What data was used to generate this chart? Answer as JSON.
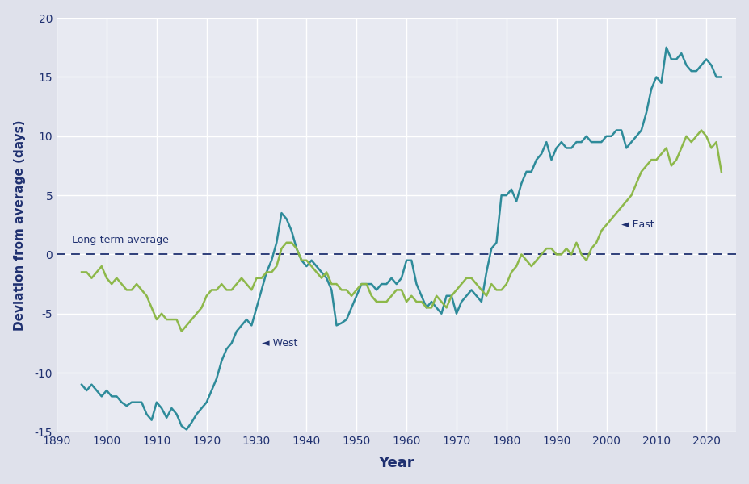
{
  "title": "",
  "xlabel": "Year",
  "ylabel": "Deviation from average (days)",
  "xlim": [
    1890,
    2026
  ],
  "ylim": [
    -15,
    20
  ],
  "xticks": [
    1890,
    1900,
    1910,
    1920,
    1930,
    1940,
    1950,
    1960,
    1970,
    1980,
    1990,
    2000,
    2010,
    2020
  ],
  "yticks": [
    -15,
    -10,
    -5,
    0,
    5,
    10,
    15,
    20
  ],
  "background_color": "#dfe1eb",
  "plot_bg_color": "#e8eaf2",
  "west_color": "#2e8b9a",
  "east_color": "#8db84a",
  "avg_line_color": "#1f3070",
  "annotation_color": "#1f3070",
  "west_data": {
    "years": [
      1895,
      1896,
      1897,
      1898,
      1899,
      1900,
      1901,
      1902,
      1903,
      1904,
      1905,
      1906,
      1907,
      1908,
      1909,
      1910,
      1911,
      1912,
      1913,
      1914,
      1915,
      1916,
      1917,
      1918,
      1919,
      1920,
      1921,
      1922,
      1923,
      1924,
      1925,
      1926,
      1927,
      1928,
      1929,
      1930,
      1931,
      1932,
      1933,
      1934,
      1935,
      1936,
      1937,
      1938,
      1939,
      1940,
      1941,
      1942,
      1943,
      1944,
      1945,
      1946,
      1947,
      1948,
      1949,
      1950,
      1951,
      1952,
      1953,
      1954,
      1955,
      1956,
      1957,
      1958,
      1959,
      1960,
      1961,
      1962,
      1963,
      1964,
      1965,
      1966,
      1967,
      1968,
      1969,
      1970,
      1971,
      1972,
      1973,
      1974,
      1975,
      1976,
      1977,
      1978,
      1979,
      1980,
      1981,
      1982,
      1983,
      1984,
      1985,
      1986,
      1987,
      1988,
      1989,
      1990,
      1991,
      1992,
      1993,
      1994,
      1995,
      1996,
      1997,
      1998,
      1999,
      2000,
      2001,
      2002,
      2003,
      2004,
      2005,
      2006,
      2007,
      2008,
      2009,
      2010,
      2011,
      2012,
      2013,
      2014,
      2015,
      2016,
      2017,
      2018,
      2019,
      2020,
      2021,
      2022,
      2023
    ],
    "values": [
      -11.0,
      -11.5,
      -11.0,
      -11.5,
      -12.0,
      -11.5,
      -12.0,
      -12.0,
      -12.5,
      -12.8,
      -12.5,
      -12.5,
      -12.5,
      -13.5,
      -14.0,
      -12.5,
      -13.0,
      -13.8,
      -13.0,
      -13.5,
      -14.5,
      -14.8,
      -14.2,
      -13.5,
      -13.0,
      -12.5,
      -11.5,
      -10.5,
      -9.0,
      -8.0,
      -7.5,
      -6.5,
      -6.0,
      -5.5,
      -6.0,
      -4.5,
      -3.0,
      -1.5,
      -0.5,
      1.0,
      3.5,
      3.0,
      2.0,
      0.5,
      -0.5,
      -1.0,
      -0.5,
      -1.0,
      -1.5,
      -2.0,
      -3.0,
      -6.0,
      -5.8,
      -5.5,
      -4.5,
      -3.5,
      -2.5,
      -2.5,
      -2.5,
      -3.0,
      -2.5,
      -2.5,
      -2.0,
      -2.5,
      -2.0,
      -0.5,
      -0.5,
      -2.5,
      -3.5,
      -4.5,
      -4.0,
      -4.5,
      -5.0,
      -3.5,
      -3.5,
      -5.0,
      -4.0,
      -3.5,
      -3.0,
      -3.5,
      -4.0,
      -1.5,
      0.5,
      1.0,
      5.0,
      5.0,
      5.5,
      4.5,
      6.0,
      7.0,
      7.0,
      8.0,
      8.5,
      9.5,
      8.0,
      9.0,
      9.5,
      9.0,
      9.0,
      9.5,
      9.5,
      10.0,
      9.5,
      9.5,
      9.5,
      10.0,
      10.0,
      10.5,
      10.5,
      9.0,
      9.5,
      10.0,
      10.5,
      12.0,
      14.0,
      15.0,
      14.5,
      17.5,
      16.5,
      16.5,
      17.0,
      16.0,
      15.5,
      15.5,
      16.0,
      16.5,
      16.0,
      15.0,
      15.0
    ]
  },
  "east_data": {
    "years": [
      1895,
      1896,
      1897,
      1898,
      1899,
      1900,
      1901,
      1902,
      1903,
      1904,
      1905,
      1906,
      1907,
      1908,
      1909,
      1910,
      1911,
      1912,
      1913,
      1914,
      1915,
      1916,
      1917,
      1918,
      1919,
      1920,
      1921,
      1922,
      1923,
      1924,
      1925,
      1926,
      1927,
      1928,
      1929,
      1930,
      1931,
      1932,
      1933,
      1934,
      1935,
      1936,
      1937,
      1938,
      1939,
      1940,
      1941,
      1942,
      1943,
      1944,
      1945,
      1946,
      1947,
      1948,
      1949,
      1950,
      1951,
      1952,
      1953,
      1954,
      1955,
      1956,
      1957,
      1958,
      1959,
      1960,
      1961,
      1962,
      1963,
      1964,
      1965,
      1966,
      1967,
      1968,
      1969,
      1970,
      1971,
      1972,
      1973,
      1974,
      1975,
      1976,
      1977,
      1978,
      1979,
      1980,
      1981,
      1982,
      1983,
      1984,
      1985,
      1986,
      1987,
      1988,
      1989,
      1990,
      1991,
      1992,
      1993,
      1994,
      1995,
      1996,
      1997,
      1998,
      1999,
      2000,
      2001,
      2002,
      2003,
      2004,
      2005,
      2006,
      2007,
      2008,
      2009,
      2010,
      2011,
      2012,
      2013,
      2014,
      2015,
      2016,
      2017,
      2018,
      2019,
      2020,
      2021,
      2022,
      2023
    ],
    "values": [
      -1.5,
      -1.5,
      -2.0,
      -1.5,
      -1.0,
      -2.0,
      -2.5,
      -2.0,
      -2.5,
      -3.0,
      -3.0,
      -2.5,
      -3.0,
      -3.5,
      -4.5,
      -5.5,
      -5.0,
      -5.5,
      -5.5,
      -5.5,
      -6.5,
      -6.0,
      -5.5,
      -5.0,
      -4.5,
      -3.5,
      -3.0,
      -3.0,
      -2.5,
      -3.0,
      -3.0,
      -2.5,
      -2.0,
      -2.5,
      -3.0,
      -2.0,
      -2.0,
      -1.5,
      -1.5,
      -1.0,
      0.5,
      1.0,
      1.0,
      0.5,
      -0.5,
      -0.5,
      -1.0,
      -1.5,
      -2.0,
      -1.5,
      -2.5,
      -2.5,
      -3.0,
      -3.0,
      -3.5,
      -3.0,
      -2.5,
      -2.5,
      -3.5,
      -4.0,
      -4.0,
      -4.0,
      -3.5,
      -3.0,
      -3.0,
      -4.0,
      -3.5,
      -4.0,
      -4.0,
      -4.5,
      -4.5,
      -3.5,
      -4.0,
      -4.5,
      -3.5,
      -3.0,
      -2.5,
      -2.0,
      -2.0,
      -2.5,
      -3.0,
      -3.5,
      -2.5,
      -3.0,
      -3.0,
      -2.5,
      -1.5,
      -1.0,
      0.0,
      -0.5,
      -1.0,
      -0.5,
      0.0,
      0.5,
      0.5,
      0.0,
      0.0,
      0.5,
      0.0,
      1.0,
      0.0,
      -0.5,
      0.5,
      1.0,
      2.0,
      2.5,
      3.0,
      3.5,
      4.0,
      4.5,
      5.0,
      6.0,
      7.0,
      7.5,
      8.0,
      8.0,
      8.5,
      9.0,
      7.5,
      8.0,
      9.0,
      10.0,
      9.5,
      10.0,
      10.5,
      10.0,
      9.0,
      9.5,
      7.0
    ]
  }
}
